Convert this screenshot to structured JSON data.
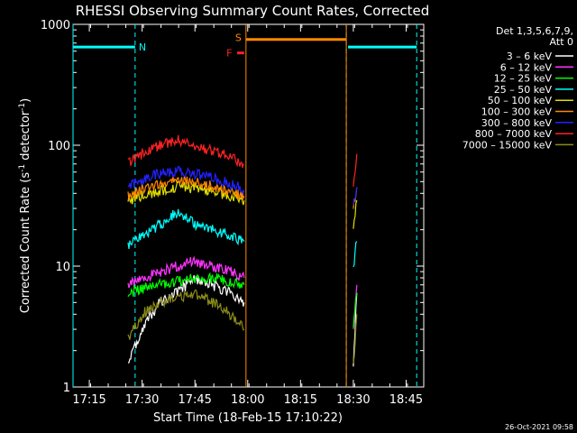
{
  "chart_data": {
    "type": "line",
    "title": "RHESSI Observing Summary Count Rates, Corrected",
    "xlabel": "Start Time (18-Feb-15 17:10:22)",
    "ylabel": "Corrected Count Rate (s^-1 detector^-1)",
    "ylabel_main": "Corrected Count Rate (s",
    "ylabel_sup1": "-1",
    "ylabel_mid": " detector",
    "ylabel_sup2": "-1",
    "ylabel_end": ")",
    "xlim": [
      "17:10:22",
      "18:50:00"
    ],
    "ylim": [
      1,
      1000
    ],
    "y_scale": "log",
    "x_ticks": [
      "17:15",
      "17:30",
      "17:45",
      "18:00",
      "18:15",
      "18:30",
      "18:45"
    ],
    "y_ticks": [
      "1",
      "10",
      "100",
      "1000"
    ],
    "legend_position": "right",
    "legend_header": [
      "Det 1,3,5,6,7,9,",
      "Att 0"
    ],
    "timestamp": "26-Oct-2021 09:58",
    "annotations": {
      "night": "N",
      "saa": "S",
      "flare": "F"
    },
    "intervals": {
      "night": [
        {
          "start": "17:10:22",
          "end": "17:28:00",
          "level": 650
        },
        {
          "start": "18:28:30",
          "end": "18:48:00",
          "level": 650
        }
      ],
      "saa": {
        "start": "17:59:30",
        "end": "18:28:00",
        "level": 750
      },
      "flare": {
        "start": "17:57:00",
        "end": "17:59:00",
        "level": 580
      },
      "night_marks": [
        "17:28:00",
        "18:28:00",
        "18:48:00"
      ],
      "data_gap": {
        "start": "17:59:30",
        "end": "18:29:00"
      }
    },
    "series": [
      {
        "name": "3 - 6 keV",
        "label": "3 – 6 keV",
        "color": "#ffffff",
        "x": [
          "17:26",
          "17:30",
          "17:35",
          "17:40",
          "17:45",
          "17:50",
          "17:55",
          "17:59",
          "18:30",
          "18:31"
        ],
        "values": [
          1.5,
          3,
          5,
          6,
          8,
          7,
          6,
          5,
          1.5,
          6
        ]
      },
      {
        "name": "6 - 12 keV",
        "label": "6 – 12 keV",
        "color": "#ff33ff",
        "x": [
          "17:26",
          "17:30",
          "17:35",
          "17:40",
          "17:45",
          "17:50",
          "17:55",
          "17:59",
          "18:30",
          "18:31"
        ],
        "values": [
          7,
          8,
          9,
          10,
          11,
          10,
          9,
          8,
          3,
          7
        ]
      },
      {
        "name": "12 - 25 keV",
        "label": "12 – 25 keV",
        "color": "#00ff00",
        "x": [
          "17:26",
          "17:30",
          "17:35",
          "17:40",
          "17:45",
          "17:50",
          "17:55",
          "17:59",
          "18:30",
          "18:31"
        ],
        "values": [
          6,
          6.5,
          7,
          7.5,
          8,
          8,
          7.5,
          7,
          3,
          6
        ]
      },
      {
        "name": "25 - 50 keV",
        "label": "25 – 50 keV",
        "color": "#00ffff",
        "x": [
          "17:26",
          "17:30",
          "17:35",
          "17:40",
          "17:45",
          "17:50",
          "17:55",
          "17:59",
          "18:30",
          "18:31"
        ],
        "values": [
          15,
          18,
          22,
          28,
          22,
          20,
          18,
          16,
          10,
          16
        ]
      },
      {
        "name": "50 - 100 keV",
        "label": "50 – 100 keV",
        "color": "#e0e000",
        "x": [
          "17:26",
          "17:30",
          "17:35",
          "17:40",
          "17:45",
          "17:50",
          "17:55",
          "17:59",
          "18:30",
          "18:31"
        ],
        "values": [
          35,
          38,
          42,
          46,
          44,
          42,
          38,
          35,
          20,
          35
        ]
      },
      {
        "name": "100 - 300 keV",
        "label": "100 – 300 keV",
        "color": "#ff8800",
        "x": [
          "17:26",
          "17:30",
          "17:35",
          "17:40",
          "17:45",
          "17:50",
          "17:55",
          "17:59",
          "18:30",
          "18:31"
        ],
        "values": [
          38,
          43,
          48,
          52,
          50,
          46,
          42,
          38,
          30,
          45
        ]
      },
      {
        "name": "300 - 800 keV",
        "label": "300 – 800 keV",
        "color": "#2222ff",
        "x": [
          "17:26",
          "17:30",
          "17:35",
          "17:40",
          "17:45",
          "17:50",
          "17:55",
          "17:59",
          "18:30",
          "18:31"
        ],
        "values": [
          45,
          52,
          58,
          62,
          58,
          54,
          48,
          43,
          30,
          45
        ]
      },
      {
        "name": "800 - 7000 keV",
        "label": "800 – 7000 keV",
        "color": "#ff2222",
        "x": [
          "17:26",
          "17:30",
          "17:35",
          "17:40",
          "17:45",
          "17:50",
          "17:55",
          "17:59",
          "18:30",
          "18:31"
        ],
        "values": [
          70,
          85,
          100,
          110,
          100,
          90,
          80,
          70,
          50,
          85
        ]
      },
      {
        "name": "7000 - 15000 keV",
        "label": "7000 – 15000 keV",
        "color": "#8b8b1a",
        "x": [
          "17:26",
          "17:30",
          "17:35",
          "17:40",
          "17:45",
          "17:50",
          "17:55",
          "17:59",
          "18:30",
          "18:31"
        ],
        "values": [
          2.5,
          4,
          5,
          5.5,
          6,
          5,
          4,
          3,
          1.5,
          4
        ]
      }
    ]
  }
}
